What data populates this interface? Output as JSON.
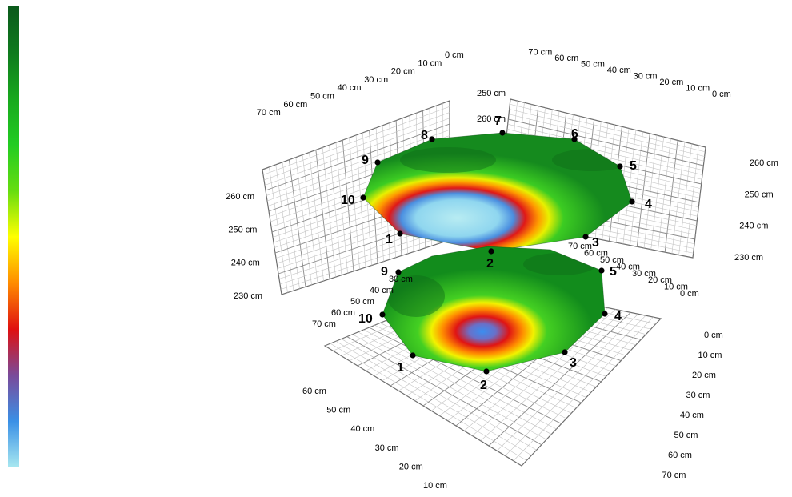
{
  "chart_data": {
    "type": "surface",
    "colorbar": {
      "colors": [
        "#0b5a1c",
        "#0f7a1e",
        "#18a81e",
        "#22cc22",
        "#66dd10",
        "#ffff00",
        "#ff8c00",
        "#e01010",
        "#7a4a9a",
        "#3a90e6",
        "#a8e8f0"
      ]
    },
    "axes": {
      "horizontal_ticks": [
        "0 cm",
        "10 cm",
        "20 cm",
        "30 cm",
        "40 cm",
        "50 cm",
        "60 cm",
        "70 cm"
      ],
      "floor_front_ticks": [
        "60 cm",
        "50 cm",
        "40 cm",
        "30 cm",
        "20 cm",
        "10 cm"
      ],
      "vertical_ticks": [
        "230 cm",
        "240 cm",
        "250 cm",
        "260 cm"
      ]
    },
    "surfaces": [
      {
        "level": "upper",
        "points": [
          {
            "id": "1"
          },
          {
            "id": "2"
          },
          {
            "id": "3"
          },
          {
            "id": "4"
          },
          {
            "id": "5"
          },
          {
            "id": "6"
          },
          {
            "id": "7"
          },
          {
            "id": "8"
          },
          {
            "id": "9"
          },
          {
            "id": "10"
          }
        ]
      },
      {
        "level": "lower",
        "points": [
          {
            "id": "1"
          },
          {
            "id": "2"
          },
          {
            "id": "3"
          },
          {
            "id": "4"
          },
          {
            "id": "5"
          },
          {
            "id": "9"
          },
          {
            "id": "10"
          }
        ]
      }
    ]
  }
}
